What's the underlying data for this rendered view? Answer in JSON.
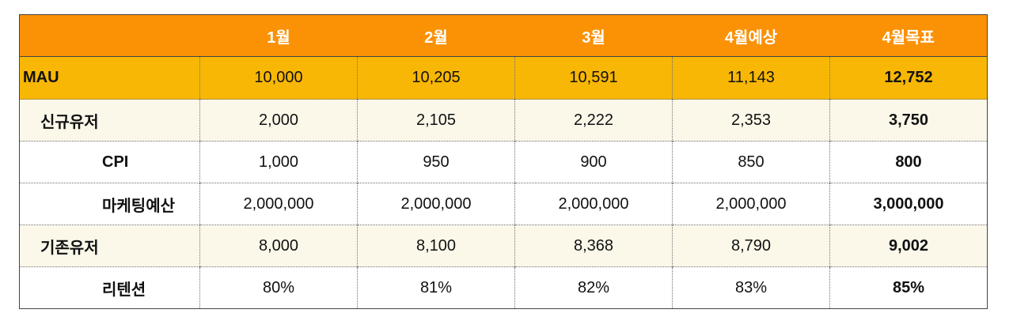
{
  "table": {
    "headers": [
      "",
      "1월",
      "2월",
      "3월",
      "4월예상",
      "4월목표"
    ],
    "rows": [
      {
        "label": "MAU",
        "values": [
          "10,000",
          "10,205",
          "10,591",
          "11,143",
          "12,752"
        ]
      },
      {
        "label": "신규유저",
        "values": [
          "2,000",
          "2,105",
          "2,222",
          "2,353",
          "3,750"
        ]
      },
      {
        "label": "CPI",
        "values": [
          "1,000",
          "950",
          "900",
          "850",
          "800"
        ]
      },
      {
        "label": "마케팅예산",
        "values": [
          "2,000,000",
          "2,000,000",
          "2,000,000",
          "2,000,000",
          "3,000,000"
        ]
      },
      {
        "label": "기존유저",
        "values": [
          "8,000",
          "8,100",
          "8,368",
          "8,790",
          "9,002"
        ]
      },
      {
        "label": "리텐션",
        "values": [
          "80%",
          "81%",
          "82%",
          "83%",
          "85%"
        ]
      }
    ]
  },
  "colors": {
    "header_bg": "#fb9105",
    "mau_bg": "#f8b705",
    "shaded_row_bg": "#fbf8ea"
  }
}
